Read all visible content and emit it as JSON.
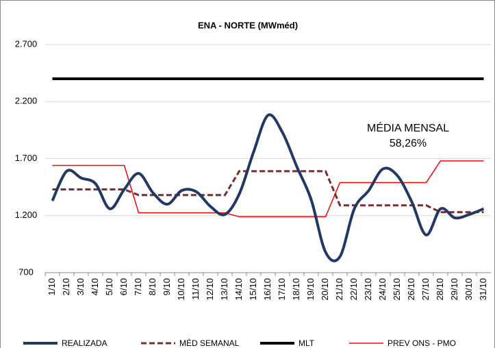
{
  "chart_data": {
    "type": "line",
    "title": "ENA - NORTE (MWméd)",
    "annotations": [
      "MÉDIA MENSAL",
      "58,26%"
    ],
    "categories": [
      "1/10",
      "2/10",
      "3/10",
      "4/10",
      "5/10",
      "6/10",
      "7/10",
      "8/10",
      "9/10",
      "10/10",
      "11/10",
      "12/10",
      "13/10",
      "14/10",
      "15/10",
      "16/10",
      "17/10",
      "18/10",
      "19/10",
      "20/10",
      "21/10",
      "22/10",
      "23/10",
      "24/10",
      "25/10",
      "26/10",
      "27/10",
      "28/10",
      "29/10",
      "30/10",
      "31/10"
    ],
    "series": [
      {
        "name": "REALIZADA",
        "color": "#1f3864",
        "smooth": true,
        "width": 4,
        "values": [
          1330,
          1590,
          1530,
          1480,
          1260,
          1430,
          1570,
          1400,
          1300,
          1420,
          1410,
          1280,
          1210,
          1390,
          1760,
          2080,
          1930,
          1630,
          1340,
          880,
          840,
          1260,
          1420,
          1610,
          1550,
          1320,
          1030,
          1260,
          1180,
          1210,
          1260
        ]
      },
      {
        "name": "MÉD SEMANAL",
        "color": "#7b2c2c",
        "dashed": true,
        "width": 3,
        "values": [
          1430,
          1430,
          1430,
          1430,
          1430,
          1430,
          1380,
          1380,
          1380,
          1380,
          1380,
          1380,
          1380,
          1590,
          1590,
          1590,
          1590,
          1590,
          1590,
          1590,
          1290,
          1290,
          1290,
          1290,
          1290,
          1290,
          1290,
          1230,
          1230,
          1230,
          1230
        ]
      },
      {
        "name": "MLT",
        "color": "#000000",
        "width": 4,
        "values": [
          2400,
          2400,
          2400,
          2400,
          2400,
          2400,
          2400,
          2400,
          2400,
          2400,
          2400,
          2400,
          2400,
          2400,
          2400,
          2400,
          2400,
          2400,
          2400,
          2400,
          2400,
          2400,
          2400,
          2400,
          2400,
          2400,
          2400,
          2400,
          2400,
          2400,
          2400
        ]
      },
      {
        "name": "PREV ONS - PMO",
        "color": "#ff0000",
        "width": 1.5,
        "values": [
          1640,
          1640,
          1640,
          1640,
          1640,
          1640,
          1225,
          1225,
          1225,
          1225,
          1225,
          1225,
          1225,
          1190,
          1190,
          1190,
          1190,
          1190,
          1190,
          1190,
          1490,
          1490,
          1490,
          1490,
          1490,
          1490,
          1490,
          1680,
          1680,
          1680,
          1680
        ]
      }
    ],
    "ylim": [
      700,
      2700
    ],
    "yticks": [
      700,
      {
        "value": 1200,
        "label": "1.200"
      },
      {
        "value": 1700,
        "label": "1.700"
      },
      {
        "value": 2200,
        "label": "2.200"
      },
      {
        "value": 2700,
        "label": "2.700"
      }
    ],
    "grid": true
  }
}
